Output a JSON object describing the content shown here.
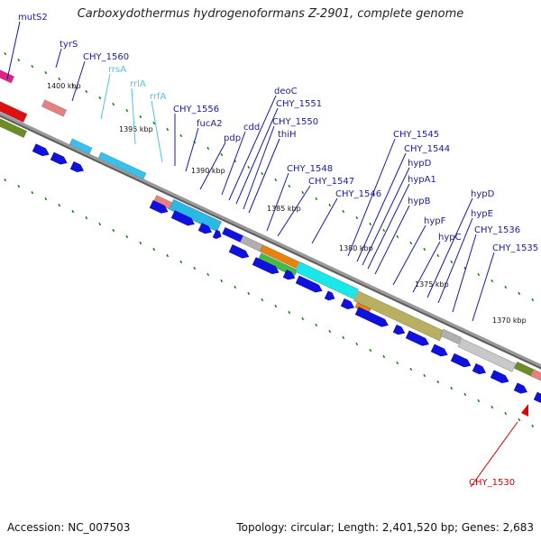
{
  "title": "Carboxydothermus hydrogenoformans Z-2901, complete genome",
  "footer": {
    "accession": "Accession: NC_007503",
    "stats": "Topology: circular; Length: 2,401,520 bp; Genes: 2,683"
  },
  "colors": {
    "gene_label": "#1a1a9e",
    "rna_label": "#4cc3e8",
    "highlight_label": "#d00000",
    "cds_arrow": "#1010e0",
    "backbone": "#9a9a9a",
    "tick": "#0d7a0d"
  },
  "scale_labels": [
    "1400 kbp",
    "1395 kbp",
    "1390 kbp",
    "1385 kbp",
    "1380 kbp",
    "1375 kbp",
    "1370 kbp"
  ],
  "gene_labels": [
    {
      "text": "mutS2",
      "kind": "gene"
    },
    {
      "text": "tyrS",
      "kind": "gene"
    },
    {
      "text": "CHY_1560",
      "kind": "gene"
    },
    {
      "text": "rrsA",
      "kind": "rna"
    },
    {
      "text": "rrlA",
      "kind": "rna"
    },
    {
      "text": "rrfA",
      "kind": "rna"
    },
    {
      "text": "CHY_1556",
      "kind": "gene"
    },
    {
      "text": "fucA2",
      "kind": "gene"
    },
    {
      "text": "pdp",
      "kind": "gene"
    },
    {
      "text": "cdd",
      "kind": "gene"
    },
    {
      "text": "deoC",
      "kind": "gene"
    },
    {
      "text": "CHY_1551",
      "kind": "gene"
    },
    {
      "text": "CHY_1550",
      "kind": "gene"
    },
    {
      "text": "thiH",
      "kind": "gene"
    },
    {
      "text": "CHY_1548",
      "kind": "gene"
    },
    {
      "text": "CHY_1547",
      "kind": "gene"
    },
    {
      "text": "CHY_1546",
      "kind": "gene"
    },
    {
      "text": "CHY_1545",
      "kind": "gene"
    },
    {
      "text": "CHY_1544",
      "kind": "gene"
    },
    {
      "text": "hypD",
      "kind": "gene"
    },
    {
      "text": "hypA1",
      "kind": "gene"
    },
    {
      "text": "hypB",
      "kind": "gene"
    },
    {
      "text": "hypF",
      "kind": "gene"
    },
    {
      "text": "hypC",
      "kind": "gene"
    },
    {
      "text": "hypD",
      "kind": "gene"
    },
    {
      "text": "hypE",
      "kind": "gene"
    },
    {
      "text": "CHY_1536",
      "kind": "gene"
    },
    {
      "text": "CHY_1535",
      "kind": "gene"
    },
    {
      "text": "CHY_1530",
      "kind": "highlight"
    }
  ]
}
